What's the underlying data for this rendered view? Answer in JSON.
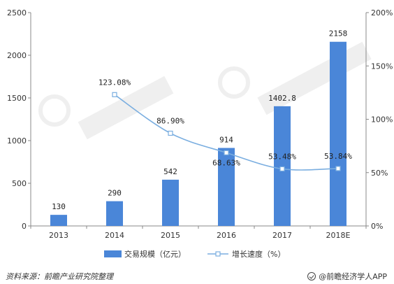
{
  "chart_data": {
    "type": "bar",
    "categories": [
      "2013",
      "2014",
      "2015",
      "2016",
      "2017",
      "2018E"
    ],
    "series": [
      {
        "name": "交易规模（亿元）",
        "type": "bar",
        "axis": "left",
        "values": [
          130,
          290,
          542,
          914,
          1402.8,
          2158
        ],
        "labels": [
          "130",
          "290",
          "542",
          "914",
          "1402.8",
          "2158"
        ],
        "color": "#4a86d8"
      },
      {
        "name": "增长速度（%）",
        "type": "line",
        "axis": "right",
        "values": [
          null,
          123.08,
          86.9,
          68.63,
          53.48,
          53.84
        ],
        "labels": [
          "",
          "123.08%",
          "86.90%",
          "68.63%",
          "53.48%",
          "53.84%"
        ],
        "color": "#7aaee0"
      }
    ],
    "y_left": {
      "min": 0,
      "max": 2500,
      "ticks": [
        "0",
        "500",
        "1000",
        "1500",
        "2000",
        "2500"
      ]
    },
    "y_right": {
      "min": 0,
      "max": 200,
      "ticks": [
        "0%",
        "50%",
        "100%",
        "150%",
        "200%"
      ]
    },
    "grid": false,
    "legend_position": "bottom"
  },
  "footer": {
    "source": "资料来源：前瞻产业研究院整理",
    "brand": "@前瞻经济学人APP"
  }
}
